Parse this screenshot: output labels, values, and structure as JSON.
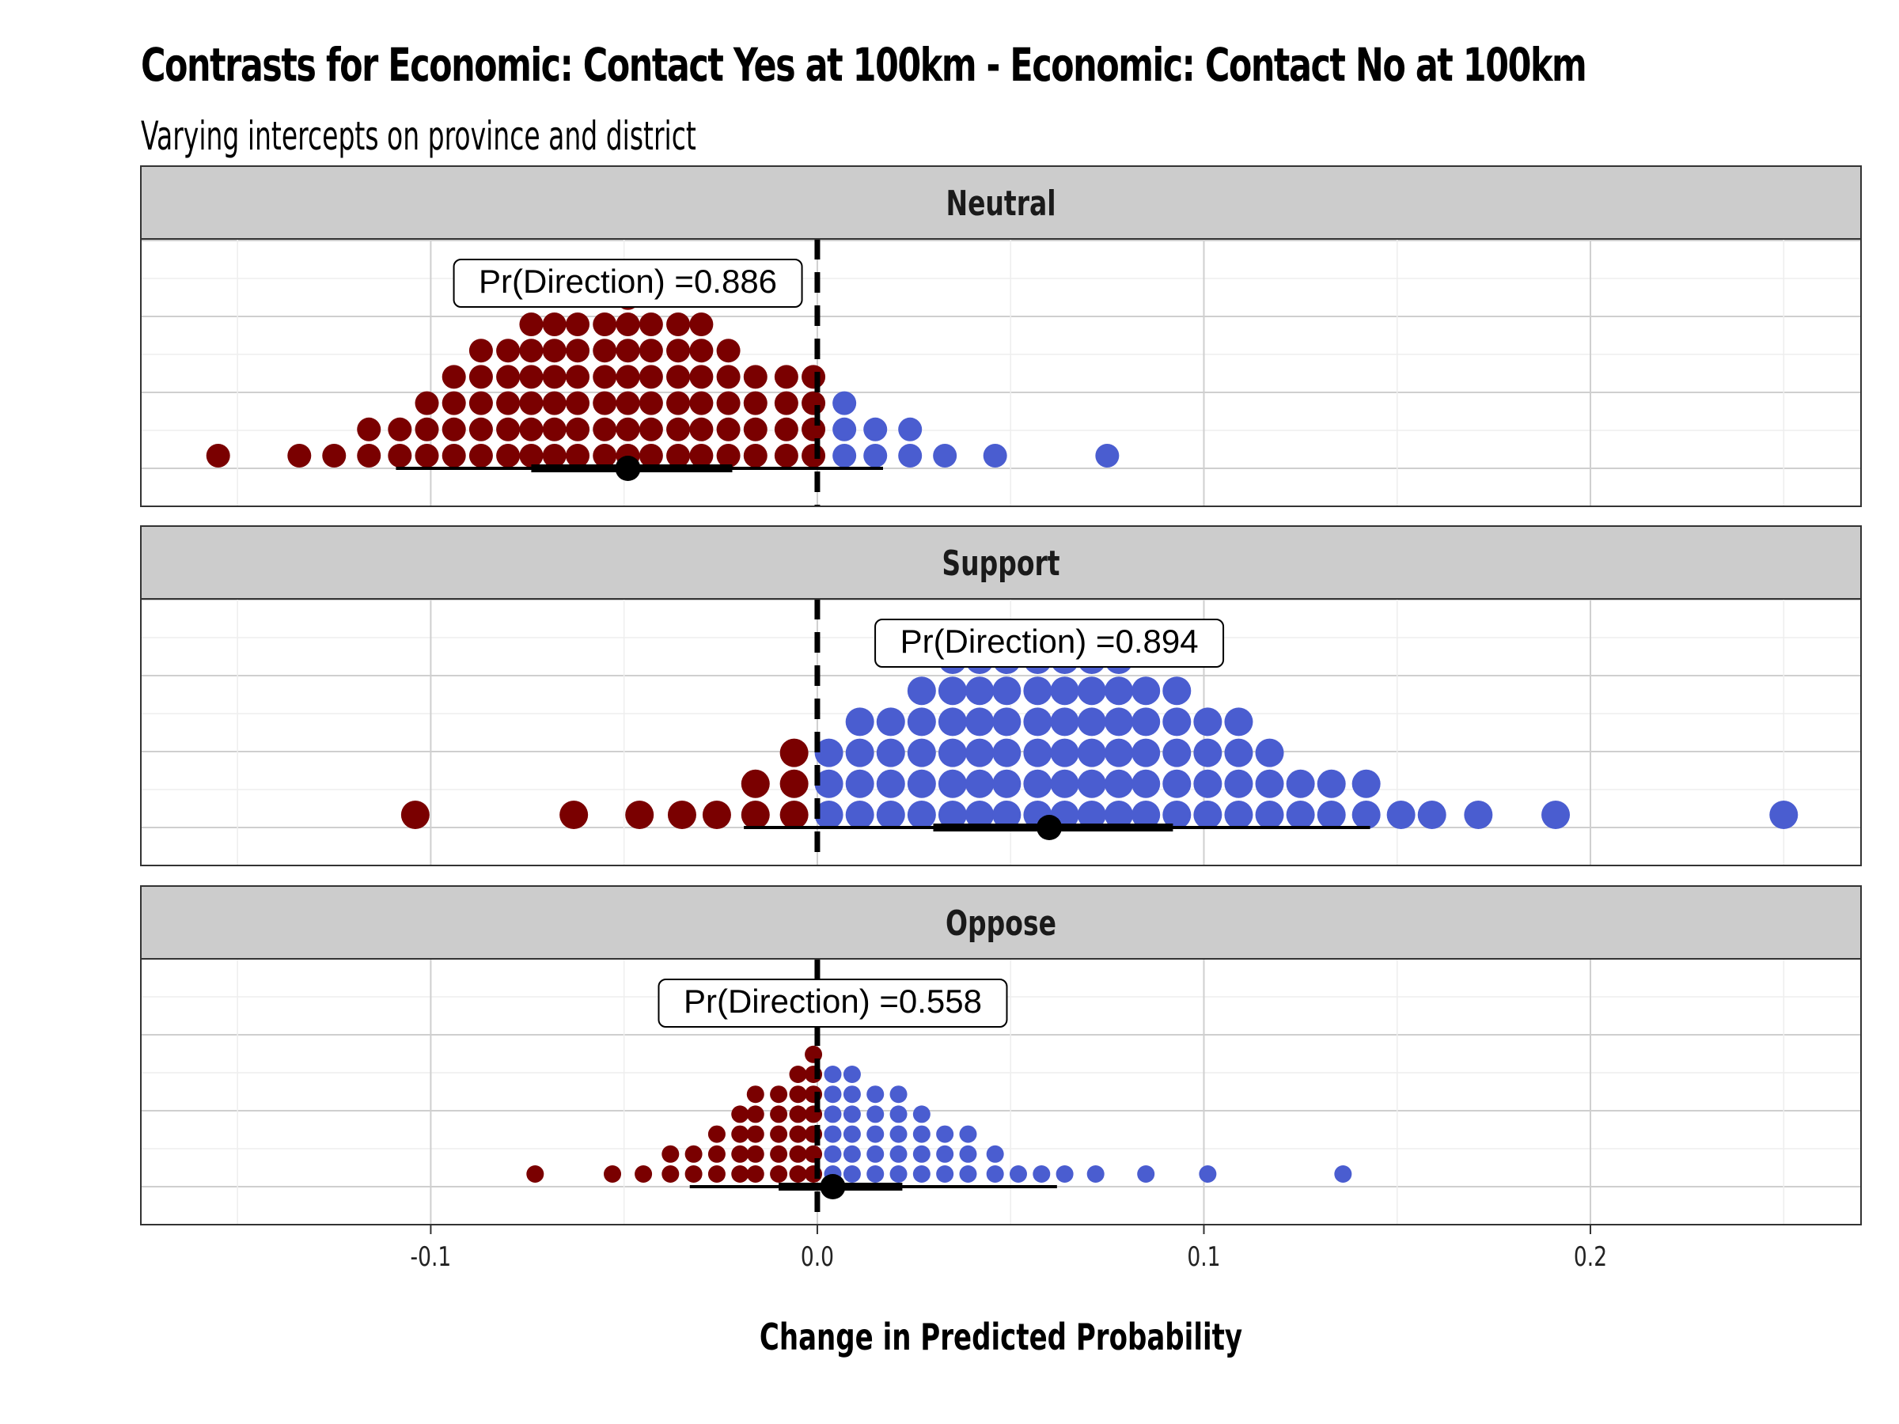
{
  "title": "Contrasts for Economic: Contact Yes at 100km - Economic: Contact No at 100km",
  "subtitle": "Varying intercepts on province and district",
  "colors": {
    "negative": "#7a0000",
    "positive": "#4a5dd0",
    "strip": "#cccccc",
    "grid": "#cfcfcf",
    "minor_grid": "#eeeeee"
  },
  "chart_data": {
    "type": "dotplot",
    "xlabel": "Change in Predicted Probability",
    "ylabel": "",
    "xlim": [
      -0.175,
      0.27
    ],
    "x_ticks": [
      -0.1,
      0.0,
      0.1,
      0.2
    ],
    "x_tick_labels": [
      "-0.1",
      "0.0",
      "0.1",
      "0.2"
    ],
    "reference_line": 0,
    "grid": true,
    "panels": [
      {
        "name": "Neutral",
        "annotation": "Pr(Direction) =0.886",
        "point_estimate": -0.049,
        "interval_inner": [
          -0.074,
          -0.022
        ],
        "interval_outer": [
          -0.109,
          0.017
        ],
        "dot_size": "medium",
        "stacks": [
          {
            "x": -0.155,
            "n": 1
          },
          {
            "x": -0.134,
            "n": 1
          },
          {
            "x": -0.125,
            "n": 1
          },
          {
            "x": -0.116,
            "n": 2
          },
          {
            "x": -0.108,
            "n": 2
          },
          {
            "x": -0.101,
            "n": 3
          },
          {
            "x": -0.094,
            "n": 4
          },
          {
            "x": -0.087,
            "n": 5
          },
          {
            "x": -0.08,
            "n": 5
          },
          {
            "x": -0.074,
            "n": 6
          },
          {
            "x": -0.068,
            "n": 6
          },
          {
            "x": -0.062,
            "n": 6
          },
          {
            "x": -0.055,
            "n": 6
          },
          {
            "x": -0.049,
            "n": 7
          },
          {
            "x": -0.043,
            "n": 6
          },
          {
            "x": -0.036,
            "n": 6
          },
          {
            "x": -0.03,
            "n": 6
          },
          {
            "x": -0.023,
            "n": 5
          },
          {
            "x": -0.016,
            "n": 4
          },
          {
            "x": -0.008,
            "n": 4
          },
          {
            "x": -0.001,
            "n": 4
          },
          {
            "x": 0.007,
            "n": 3
          },
          {
            "x": 0.015,
            "n": 2
          },
          {
            "x": 0.024,
            "n": 2
          },
          {
            "x": 0.033,
            "n": 1
          },
          {
            "x": 0.046,
            "n": 1
          },
          {
            "x": 0.075,
            "n": 1
          }
        ]
      },
      {
        "name": "Support",
        "annotation": "Pr(Direction) =0.894",
        "point_estimate": 0.06,
        "interval_inner": [
          0.03,
          0.092
        ],
        "interval_outer": [
          -0.019,
          0.143
        ],
        "dot_size": "large",
        "stacks": [
          {
            "x": -0.104,
            "n": 1
          },
          {
            "x": -0.063,
            "n": 1
          },
          {
            "x": -0.046,
            "n": 1
          },
          {
            "x": -0.035,
            "n": 1
          },
          {
            "x": -0.026,
            "n": 1
          },
          {
            "x": -0.016,
            "n": 2
          },
          {
            "x": -0.006,
            "n": 3
          },
          {
            "x": 0.003,
            "n": 3
          },
          {
            "x": 0.011,
            "n": 4
          },
          {
            "x": 0.019,
            "n": 4
          },
          {
            "x": 0.027,
            "n": 5
          },
          {
            "x": 0.035,
            "n": 6
          },
          {
            "x": 0.042,
            "n": 6
          },
          {
            "x": 0.049,
            "n": 6
          },
          {
            "x": 0.057,
            "n": 6
          },
          {
            "x": 0.064,
            "n": 6
          },
          {
            "x": 0.071,
            "n": 6
          },
          {
            "x": 0.078,
            "n": 6
          },
          {
            "x": 0.085,
            "n": 5
          },
          {
            "x": 0.093,
            "n": 5
          },
          {
            "x": 0.101,
            "n": 4
          },
          {
            "x": 0.109,
            "n": 4
          },
          {
            "x": 0.117,
            "n": 3
          },
          {
            "x": 0.125,
            "n": 2
          },
          {
            "x": 0.133,
            "n": 2
          },
          {
            "x": 0.142,
            "n": 2
          },
          {
            "x": 0.151,
            "n": 1
          },
          {
            "x": 0.159,
            "n": 1
          },
          {
            "x": 0.171,
            "n": 1
          },
          {
            "x": 0.191,
            "n": 1
          },
          {
            "x": 0.25,
            "n": 1
          }
        ]
      },
      {
        "name": "Oppose",
        "annotation": "Pr(Direction) =0.558",
        "point_estimate": 0.004,
        "interval_inner": [
          -0.01,
          0.022
        ],
        "interval_outer": [
          -0.033,
          0.062
        ],
        "dot_size": "small",
        "stacks": [
          {
            "x": -0.073,
            "n": 1
          },
          {
            "x": -0.053,
            "n": 1
          },
          {
            "x": -0.045,
            "n": 1
          },
          {
            "x": -0.038,
            "n": 2
          },
          {
            "x": -0.032,
            "n": 2
          },
          {
            "x": -0.026,
            "n": 3
          },
          {
            "x": -0.02,
            "n": 4
          },
          {
            "x": -0.016,
            "n": 5
          },
          {
            "x": -0.01,
            "n": 5
          },
          {
            "x": -0.005,
            "n": 6
          },
          {
            "x": -0.001,
            "n": 7
          },
          {
            "x": 0.004,
            "n": 6
          },
          {
            "x": 0.009,
            "n": 6
          },
          {
            "x": 0.015,
            "n": 5
          },
          {
            "x": 0.021,
            "n": 5
          },
          {
            "x": 0.027,
            "n": 4
          },
          {
            "x": 0.033,
            "n": 3
          },
          {
            "x": 0.039,
            "n": 3
          },
          {
            "x": 0.046,
            "n": 2
          },
          {
            "x": 0.052,
            "n": 1
          },
          {
            "x": 0.058,
            "n": 1
          },
          {
            "x": 0.064,
            "n": 1
          },
          {
            "x": 0.072,
            "n": 1
          },
          {
            "x": 0.085,
            "n": 1
          },
          {
            "x": 0.101,
            "n": 1
          },
          {
            "x": 0.136,
            "n": 1
          }
        ]
      }
    ]
  }
}
